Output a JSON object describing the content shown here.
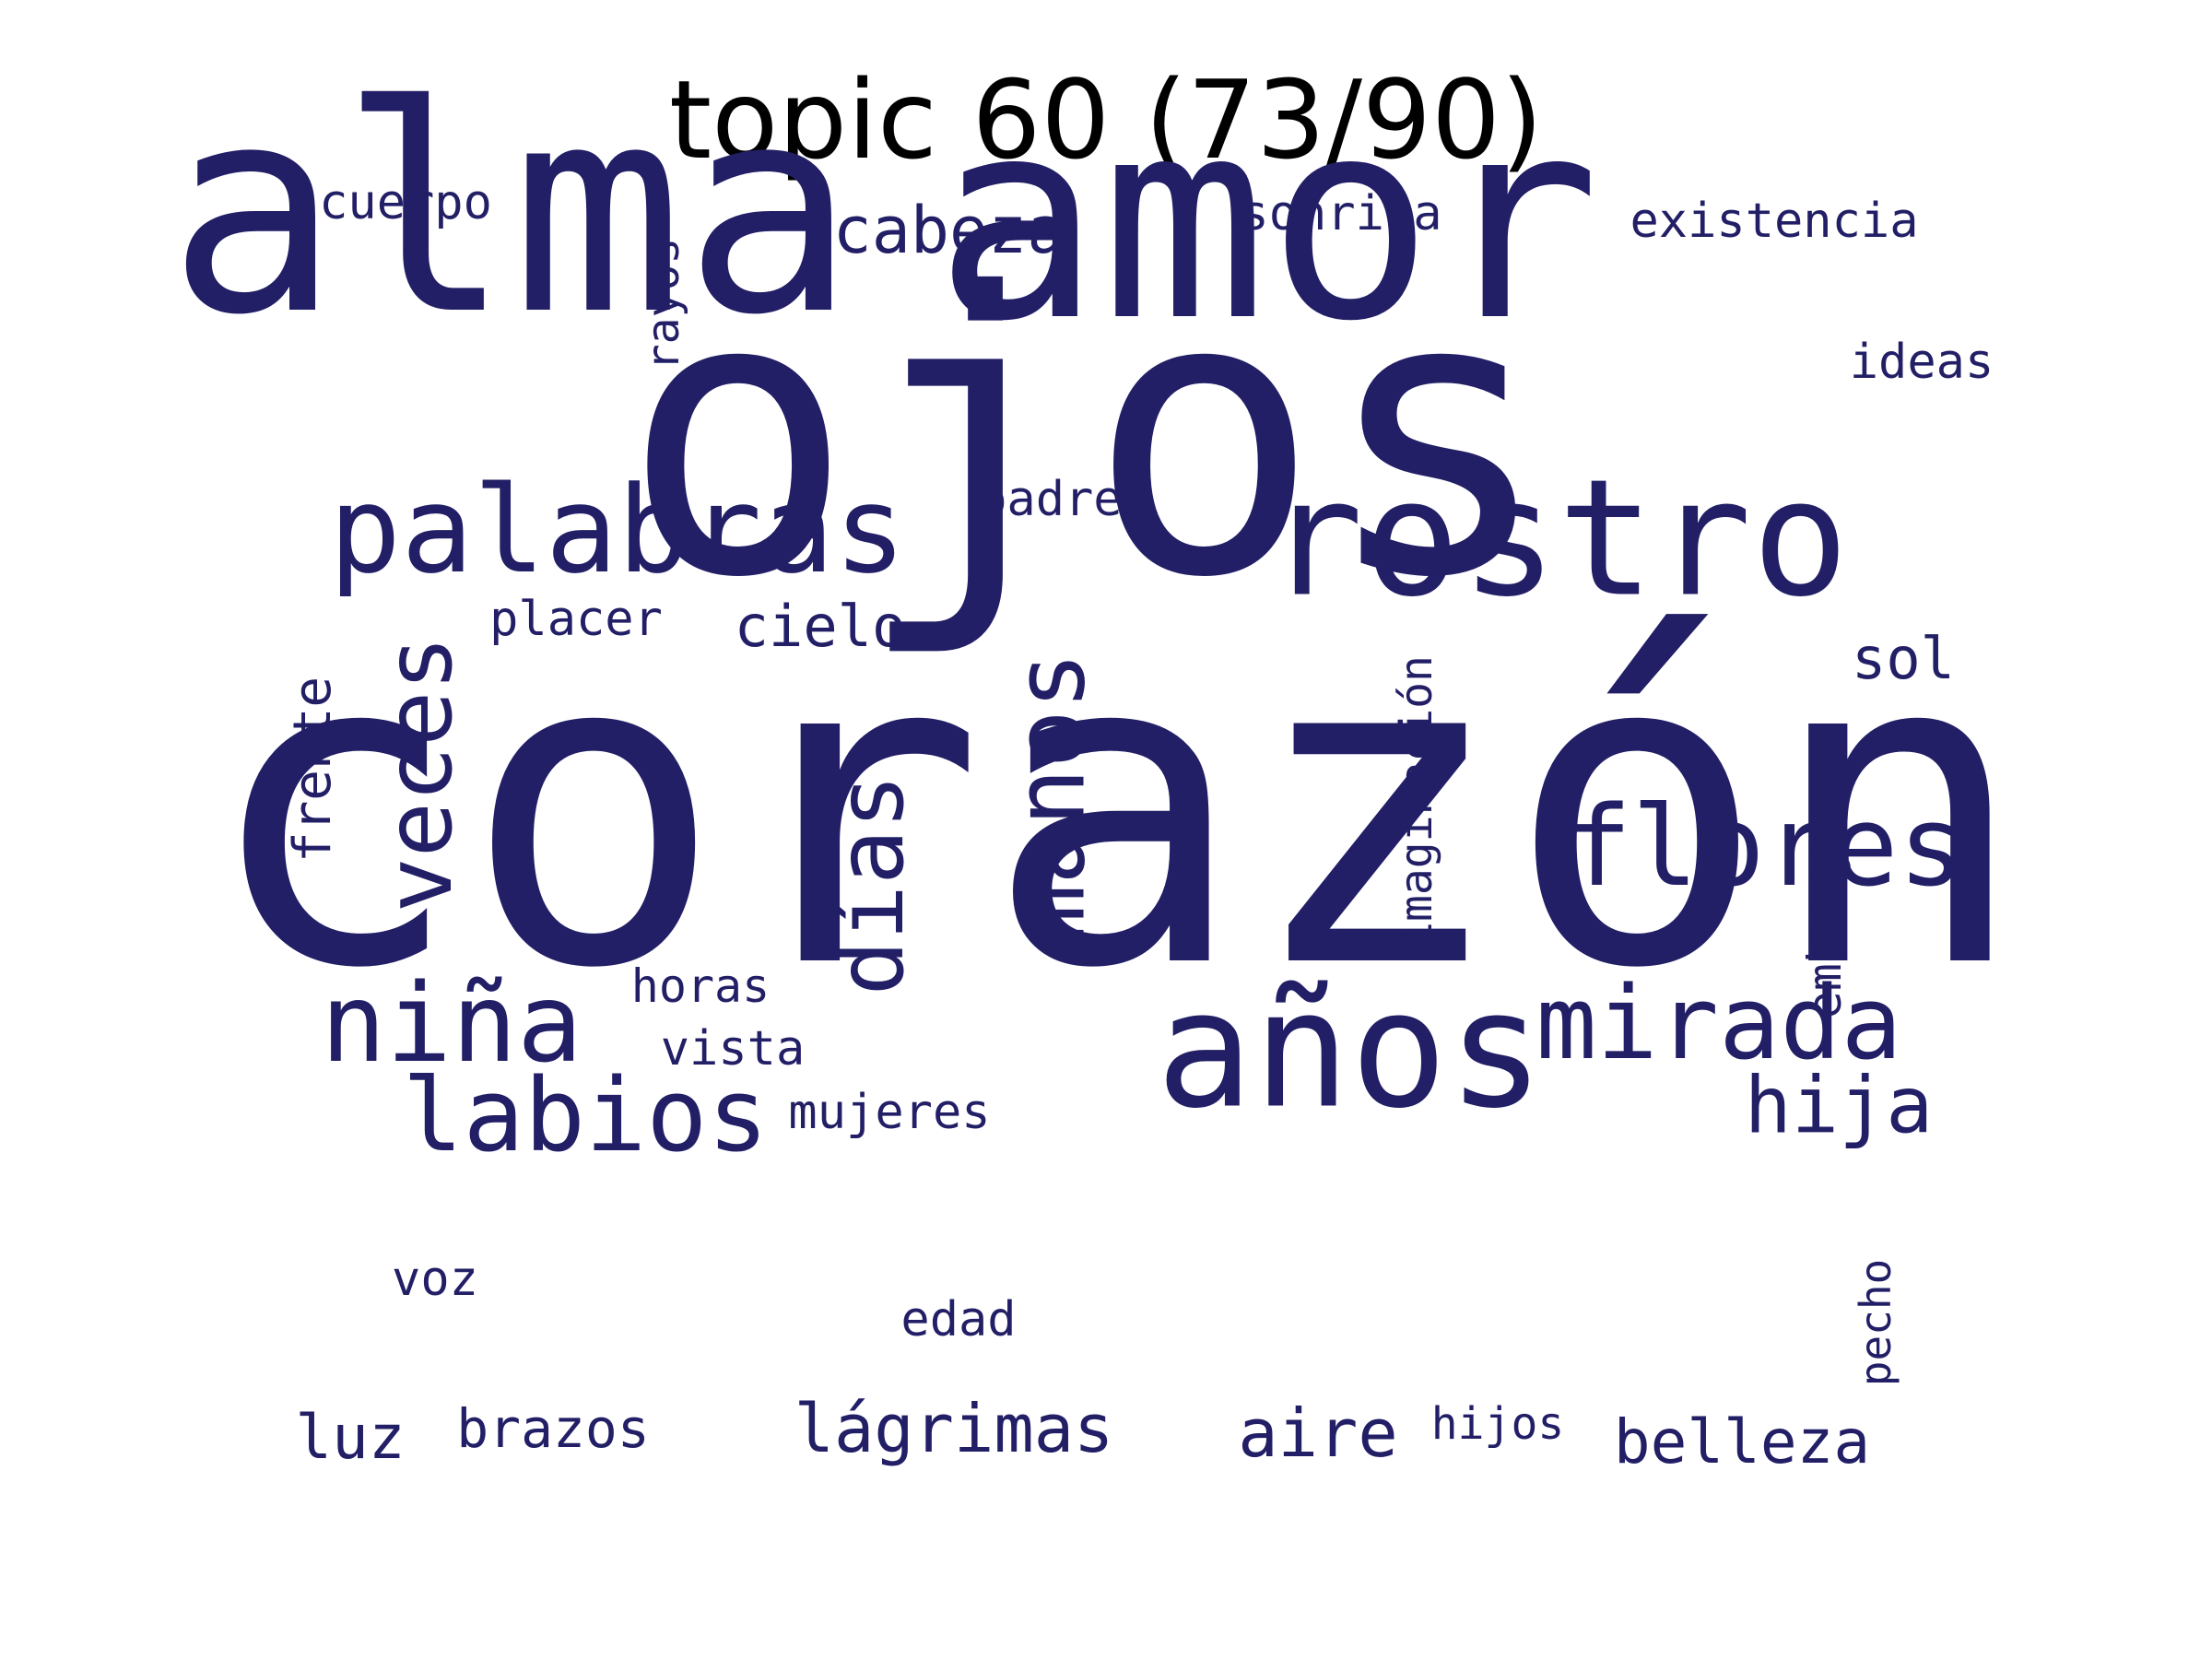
{
  "title": "topic 60 (73/90)",
  "colors": {
    "word": "#221f66",
    "title": "#000000",
    "background": "#ffffff"
  },
  "words": {
    "ojos": "ojos",
    "corazon": "corazón",
    "alma": "alma",
    "amor": "amor",
    "rostro": "rostro",
    "palabras": "palabras",
    "anos": "años",
    "veces": "veces",
    "manos": "manos",
    "mirada": "mirada",
    "flores": "flores",
    "nina": "niña",
    "labios": "labios",
    "dias": "días",
    "hija": "hija",
    "cabeza": "cabeza",
    "cielo": "cielo",
    "sol": "sol",
    "luz": "luz",
    "brazos": "brazos",
    "lagrimas": "lágrimas",
    "aire": "aire",
    "belleza": "belleza",
    "cuerpo": "cuerpo",
    "sonrisa": "sonrisa",
    "existencia": "existencia",
    "rayos": "rayos",
    "ideas": "ideas",
    "padres": "padres",
    "placer": "placer",
    "frente": "frente",
    "imaginacion": "imaginación",
    "embargo": "embargo",
    "horas": "horas",
    "vista": "vista",
    "mujeres": "mujeres",
    "voz": "voz",
    "edad": "edad",
    "pecho": "pecho",
    "hijos": "hijos"
  }
}
